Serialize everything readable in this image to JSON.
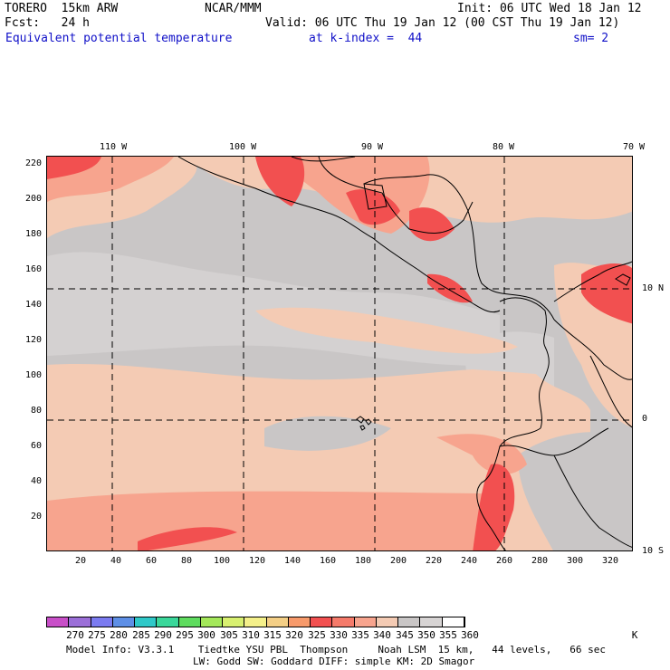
{
  "header": {
    "model": "TORERO  15km ARW",
    "org": "NCAR/MMM",
    "init": "Init: 06 UTC Wed 18 Jan 12",
    "fcst": "Fcst:   24 h",
    "valid": "Valid: 06 UTC Thu 19 Jan 12 (00 CST Thu 19 Jan 12)",
    "field": "Equivalent potential temperature",
    "level": "at k-index =  44",
    "smooth": "sm= 2"
  },
  "map": {
    "lon_labels": [
      "110 W",
      "100 W",
      "90 W",
      "80 W",
      "70 W"
    ],
    "lat_labels": [
      "10 N",
      "0",
      "10 S"
    ],
    "y_ticks": [
      "220",
      "200",
      "180",
      "160",
      "140",
      "120",
      "100",
      "80",
      "60",
      "40",
      "20"
    ],
    "x_ticks": [
      "20",
      "40",
      "60",
      "80",
      "100",
      "120",
      "140",
      "160",
      "180",
      "200",
      "220",
      "240",
      "260",
      "280",
      "300",
      "320"
    ]
  },
  "colorbar": {
    "labels": [
      "270",
      "275",
      "280",
      "285",
      "290",
      "295",
      "300",
      "305",
      "310",
      "315",
      "320",
      "325",
      "330",
      "335",
      "340",
      "345",
      "350",
      "355",
      "360",
      "K"
    ],
    "colors": [
      "#c84fc8",
      "#9b6fd8",
      "#7b7bf0",
      "#5e8fe6",
      "#2fc8c8",
      "#3ad79a",
      "#5fdc5f",
      "#a4e85a",
      "#d8f070",
      "#f4f08a",
      "#f4cf86",
      "#f79a6b",
      "#f25050",
      "#f57a6a",
      "#f7a48e",
      "#f4cbb4",
      "#c9c6c6",
      "#d7d4d4",
      "#ffffff"
    ]
  },
  "footer": {
    "line1": "Model Info: V3.3.1    Tiedtke YSU PBL  Thompson     Noah LSM  15 km,   44 levels,   66 sec",
    "line2": "LW: Godd SW: Goddard DIFF: simple KM: 2D Smagor"
  }
}
